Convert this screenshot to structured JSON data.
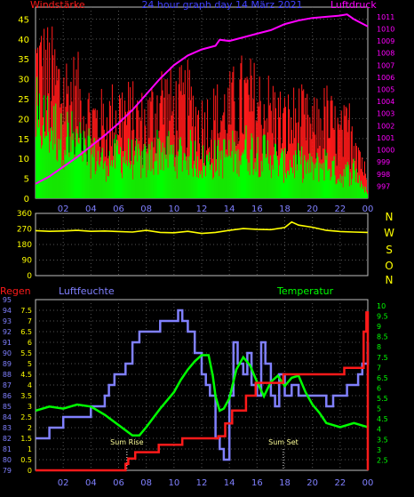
{
  "header": {
    "left": "Windstärke",
    "center": "24 hour graph day  14 März 2021",
    "right": "Luftdruck"
  },
  "colors": {
    "background": "#000000",
    "wind_peak": "#ff1a1a",
    "wind_avg": "#00ff00",
    "pressure": "#ff00ff",
    "direction": "#ffff00",
    "rain": "#ff1a1a",
    "humidity": "#8080ff",
    "temperature": "#00ff00",
    "grid": "#555555",
    "frame": "#c0c0c0"
  },
  "chart_data": [
    {
      "id": "wind-pressure",
      "type": "bar",
      "title": "24 hour graph day  14 März 2021",
      "ylabel_left": "Windstärke",
      "ylabel_right": "Luftdruck",
      "xlim": [
        0,
        24
      ],
      "ylim": [
        0,
        48
      ],
      "y2lim": [
        996,
        1011.8
      ],
      "x_tick_labels": [
        "02",
        "04",
        "06",
        "08",
        "10",
        "12",
        "14",
        "16",
        "18",
        "20",
        "22",
        "00"
      ],
      "y_tick_labels": [
        "0",
        "5",
        "10",
        "15",
        "20",
        "25",
        "30",
        "35",
        "40",
        "45"
      ],
      "y2_tick_labels": [
        "997",
        "998",
        "999",
        "1000",
        "1001",
        "1002",
        "1003",
        "1004",
        "1005",
        "1006",
        "1007",
        "1008",
        "1009",
        "1010",
        "1011"
      ],
      "series": [
        {
          "name": "Windstärke",
          "style": "peak-bars",
          "x": [
            0,
            1,
            2,
            3,
            4,
            5,
            6,
            7,
            8,
            9,
            10,
            11,
            12,
            13,
            14,
            15,
            16,
            17,
            18,
            19,
            20,
            21,
            22,
            23,
            24
          ],
          "values": [
            40,
            36,
            32,
            30,
            24,
            22,
            26,
            24,
            22,
            30,
            26,
            28,
            22,
            24,
            26,
            30,
            28,
            26,
            22,
            24,
            20,
            24,
            18,
            22,
            4
          ]
        },
        {
          "name": "Windstärke",
          "style": "avg-bars",
          "x": [
            0,
            1,
            2,
            3,
            4,
            5,
            6,
            7,
            8,
            9,
            10,
            11,
            12,
            13,
            14,
            15,
            16,
            17,
            18,
            19,
            20,
            21,
            22,
            23,
            24
          ],
          "values": [
            22,
            20,
            18,
            16,
            12,
            10,
            12,
            11,
            10,
            14,
            12,
            13,
            10,
            11,
            12,
            14,
            13,
            12,
            9,
            10,
            8,
            10,
            6,
            8,
            1
          ]
        },
        {
          "name": "Luftdruck",
          "style": "line",
          "axis": "right",
          "x": [
            0,
            1,
            2,
            3,
            4,
            5,
            6,
            7,
            8,
            9,
            10,
            11,
            12,
            13,
            13.3,
            14,
            15,
            16,
            17,
            18,
            19,
            20,
            21,
            22,
            22.5,
            23,
            24
          ],
          "values": [
            997.2,
            997.8,
            998.6,
            999.4,
            1000.3,
            1001.2,
            1002.2,
            1003.3,
            1004.6,
            1005.9,
            1007.0,
            1007.8,
            1008.3,
            1008.6,
            1009.1,
            1009.0,
            1009.3,
            1009.6,
            1009.9,
            1010.4,
            1010.7,
            1010.9,
            1011.0,
            1011.1,
            1011.2,
            1010.8,
            1010.2
          ]
        }
      ]
    },
    {
      "id": "wind-direction",
      "type": "line",
      "xlim": [
        0,
        24
      ],
      "ylim": [
        0,
        360
      ],
      "y_tick_labels": [
        "0",
        "90",
        "180",
        "270",
        "360"
      ],
      "direction_labels": [
        "N",
        "W",
        "S",
        "O",
        "N"
      ],
      "series": [
        {
          "name": "",
          "x": [
            0,
            1,
            2,
            3,
            4,
            5,
            6,
            7,
            8,
            9,
            10,
            11,
            12,
            13,
            14,
            15,
            16,
            17,
            18,
            18.5,
            19,
            20,
            21,
            22,
            23,
            24
          ],
          "values": [
            260,
            256,
            258,
            262,
            256,
            258,
            255,
            252,
            262,
            250,
            248,
            256,
            244,
            250,
            262,
            272,
            268,
            266,
            278,
            310,
            292,
            280,
            262,
            255,
            252,
            250
          ]
        }
      ]
    },
    {
      "id": "rain-humidity-temp",
      "type": "line",
      "ylabel_left": "Regen",
      "ylabel_middle": "Luftfeuchte",
      "ylabel_right": "Temperatur",
      "xlim": [
        0,
        24
      ],
      "rain_ylim": [
        0,
        8
      ],
      "humidity_ylim": [
        79,
        95
      ],
      "temperature_ylim": [
        2.0,
        10.3
      ],
      "x_tick_labels": [
        "02",
        "04",
        "06",
        "08",
        "10",
        "12",
        "14",
        "16",
        "18",
        "20",
        "22",
        "00"
      ],
      "rain_tick_labels": [
        "0",
        "0.5",
        "1",
        "1.5",
        "2",
        "2.5",
        "3",
        "3.5",
        "4",
        "4.5",
        "5",
        "5.5",
        "6",
        "6.5",
        "7",
        "7.5"
      ],
      "humidity_tick_labels": [
        "79",
        "80",
        "81",
        "82",
        "83",
        "84",
        "85",
        "86",
        "87",
        "88",
        "89",
        "90",
        "91",
        "92",
        "93",
        "94",
        "95"
      ],
      "temperature_tick_labels": [
        "2.5",
        "3",
        "3.5",
        "4",
        "4.5",
        "5",
        "5.5",
        "6",
        "6.5",
        "7",
        "7.5",
        "8",
        "8.5",
        "9",
        "9.5",
        "10"
      ],
      "annotations": [
        {
          "label": "Sum Rise",
          "x": 6.6
        },
        {
          "label": "Sum Set",
          "x": 17.9
        }
      ],
      "series": [
        {
          "name": "Regen",
          "axis": "rain",
          "step": true,
          "x": [
            0,
            6.2,
            6.5,
            6.7,
            7.2,
            8.9,
            10.6,
            13.2,
            13.7,
            14.2,
            15.2,
            15.9,
            17.9,
            22.3,
            23.7,
            23.9,
            24
          ],
          "values": [
            0,
            0,
            0.3,
            0.55,
            0.85,
            1.2,
            1.5,
            1.6,
            2.2,
            2.8,
            3.5,
            4.1,
            4.5,
            4.8,
            6.5,
            7.4,
            0
          ]
        },
        {
          "name": "Luftfeuchte",
          "axis": "humidity",
          "step": true,
          "x": [
            0,
            1,
            2,
            3,
            4,
            5,
            5.3,
            5.7,
            6,
            6.5,
            7,
            7.5,
            8,
            9,
            10,
            10.3,
            10.6,
            11,
            11.5,
            12,
            12.3,
            12.6,
            13,
            13.3,
            13.6,
            14,
            14.3,
            14.6,
            15,
            15.3,
            15.6,
            16,
            16.3,
            16.6,
            17,
            17.3,
            17.6,
            18,
            18.5,
            19,
            19.5,
            20,
            20.5,
            21,
            21.5,
            22,
            22.5,
            23,
            23.3,
            23.6,
            24
          ],
          "values": [
            82,
            83,
            84,
            84,
            85,
            86,
            87,
            88,
            88,
            89,
            91,
            92,
            92,
            93,
            93,
            94,
            93,
            92,
            90,
            88,
            87,
            86,
            82,
            81,
            80,
            86,
            91,
            89,
            88,
            90,
            87,
            86,
            91,
            89,
            86,
            85,
            88,
            86,
            87,
            86,
            86,
            86,
            86,
            85,
            86,
            86,
            87,
            87,
            88,
            89,
            91
          ]
        },
        {
          "name": "Temperatur",
          "axis": "temperature",
          "x": [
            0,
            1,
            2,
            3,
            4,
            5,
            6,
            7,
            7.5,
            8,
            9,
            10,
            10.5,
            11,
            11.5,
            12,
            12.5,
            12.8,
            13,
            13.3,
            13.6,
            14,
            14.5,
            15,
            15.5,
            16,
            16.5,
            17,
            17.5,
            18,
            18.5,
            19,
            19.5,
            20,
            20.5,
            21,
            22,
            23,
            24
          ],
          "values": [
            4.9,
            5.1,
            5.0,
            5.2,
            5.1,
            4.7,
            4.2,
            3.7,
            3.7,
            4.1,
            5.0,
            5.8,
            6.4,
            6.9,
            7.3,
            7.6,
            7.6,
            6.6,
            5.6,
            4.9,
            5.0,
            5.5,
            6.9,
            7.5,
            7.1,
            6.3,
            5.6,
            6.3,
            6.6,
            6.1,
            6.5,
            6.6,
            5.8,
            5.2,
            4.8,
            4.3,
            4.1,
            4.3,
            4.1
          ]
        }
      ]
    }
  ]
}
